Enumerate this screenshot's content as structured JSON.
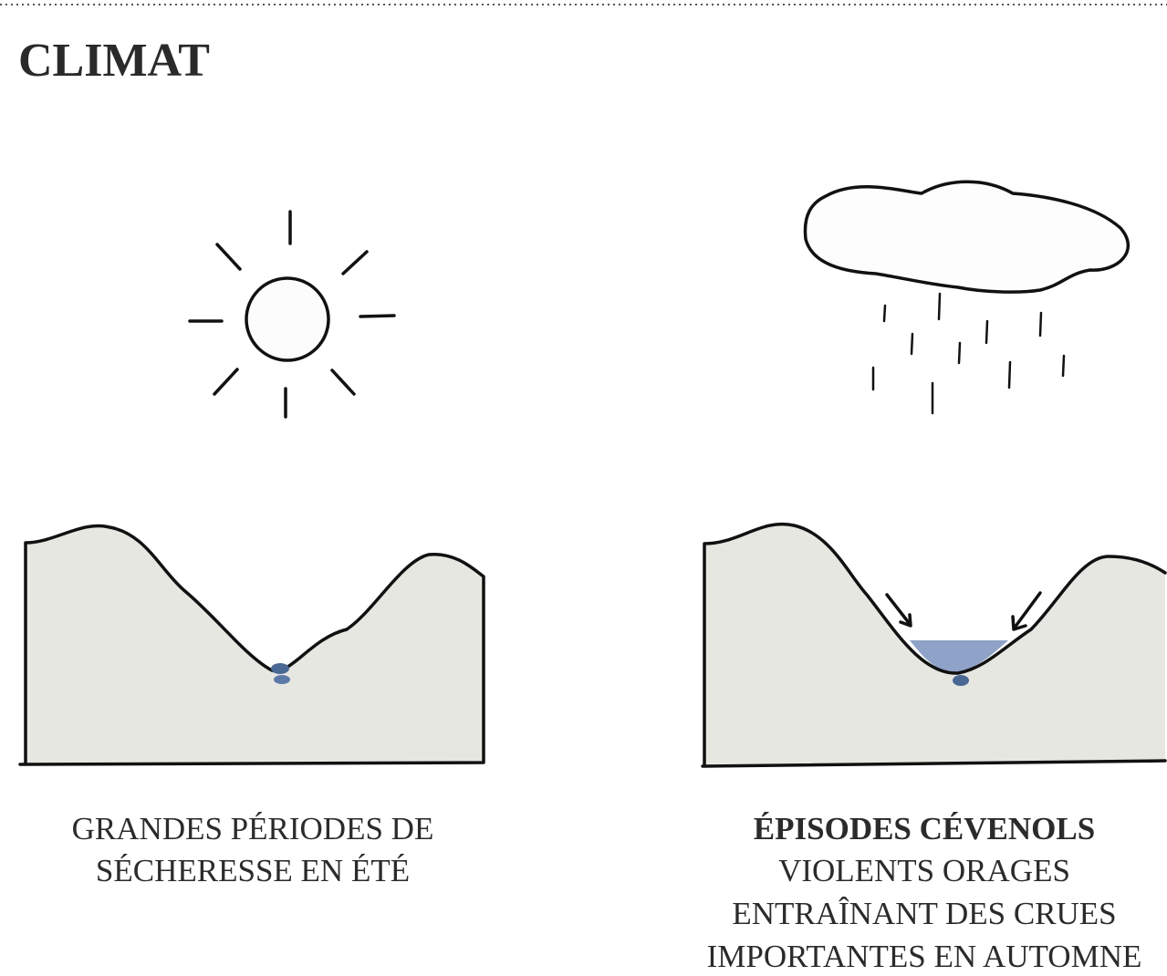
{
  "title": "CLIMAT",
  "panels": [
    {
      "caption": [
        "GRANDES PÉRIODES DE",
        "SÉCHERESSE EN ÉTÉ"
      ]
    },
    {
      "caption_bold": "ÉPISODES CÉVENOLS",
      "caption": [
        "VIOLENTS ORAGES",
        "ENTRAÎNANT DES CRUES",
        "IMPORTANTES EN AUTOMNE"
      ]
    }
  ]
}
